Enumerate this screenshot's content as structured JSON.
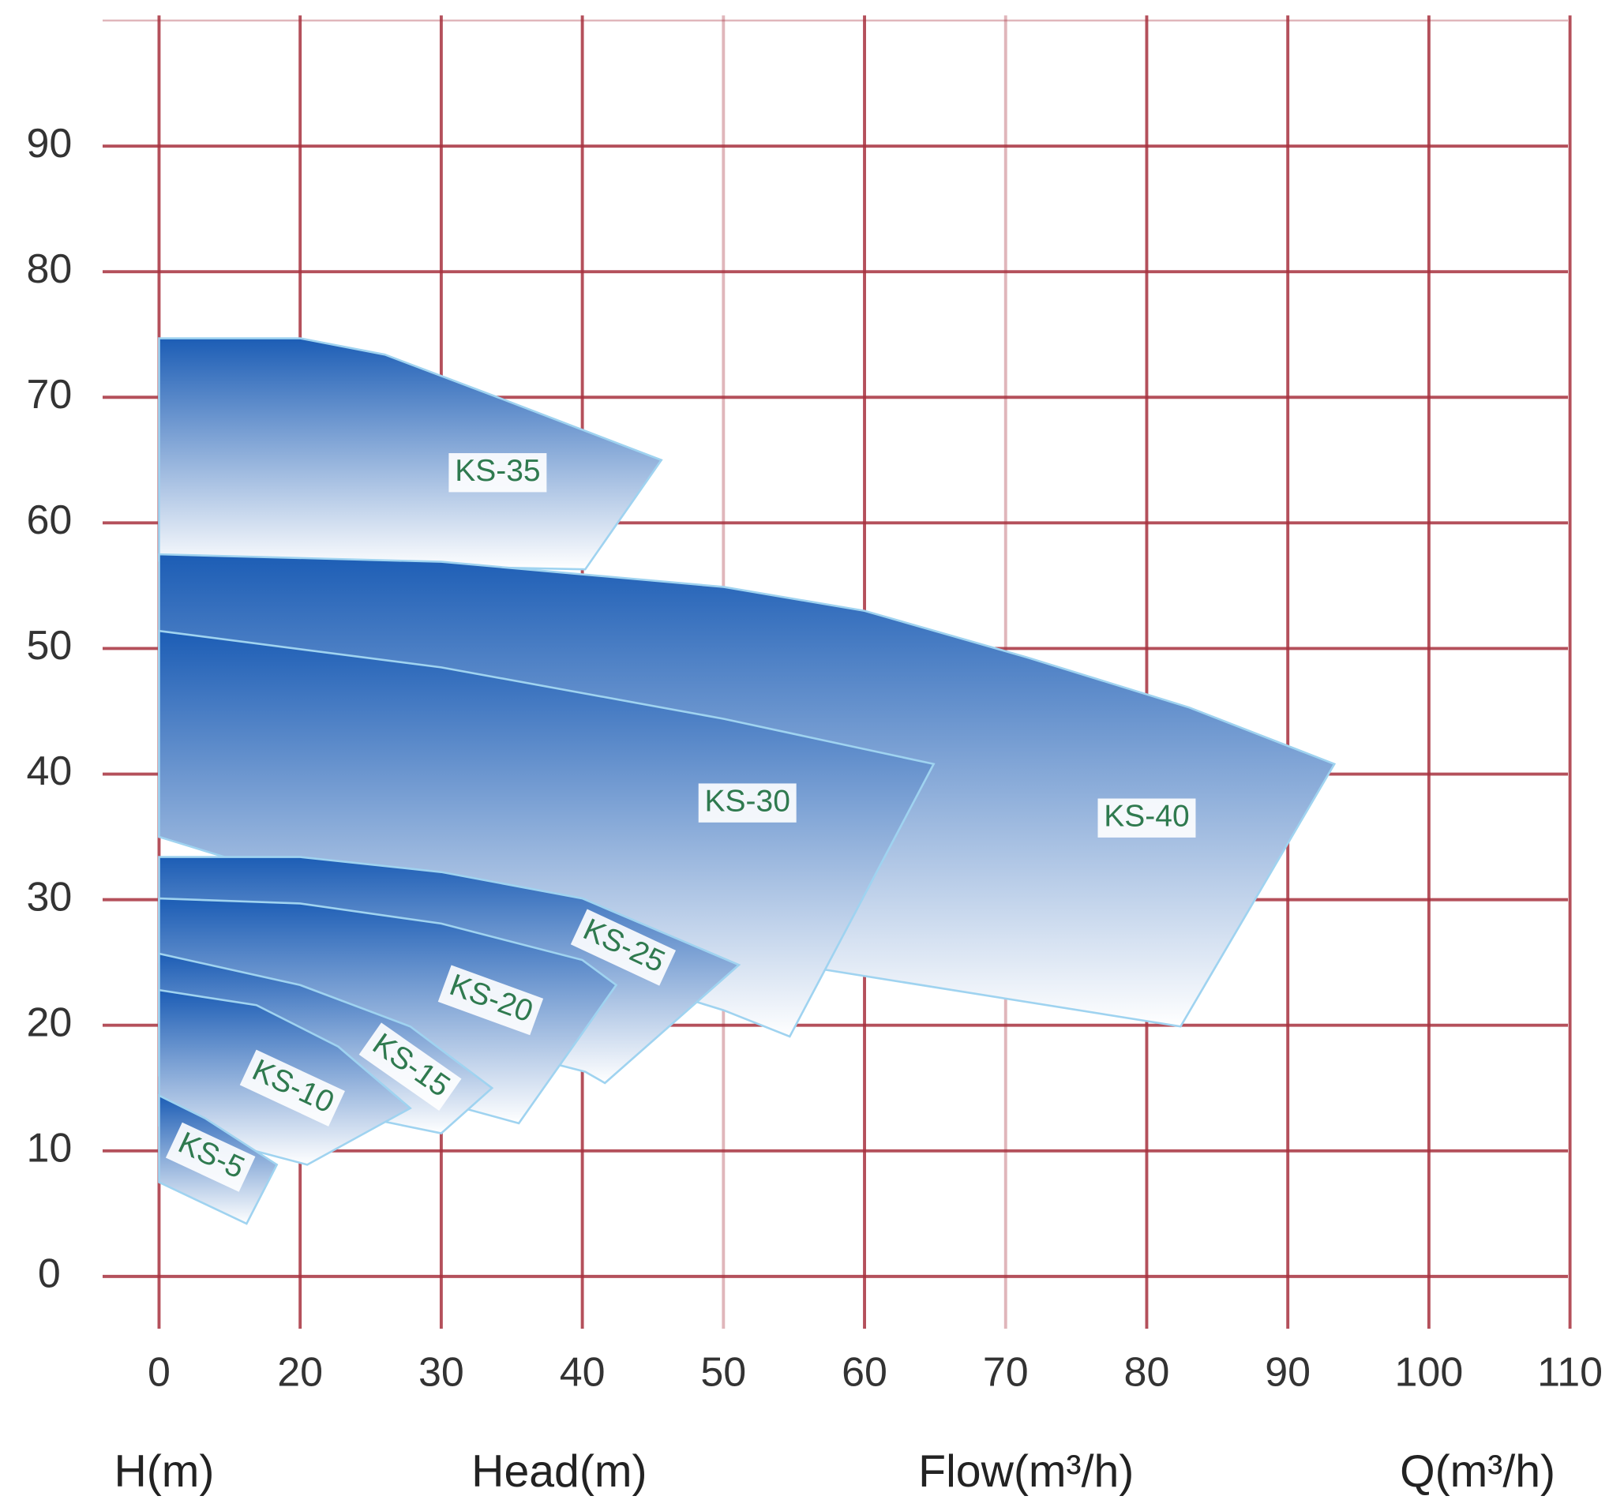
{
  "chart_data": {
    "type": "area",
    "x_labels": [
      "H(m)",
      "Head(m)",
      "Flow(m³/h)",
      "Q(m³/h)"
    ],
    "xticks": [
      0,
      20,
      30,
      40,
      50,
      60,
      70,
      80,
      90,
      100,
      110
    ],
    "ylim": [
      0,
      100
    ],
    "yticks": [
      0,
      10,
      20,
      30,
      40,
      50,
      60,
      70,
      80,
      90
    ],
    "grid": true,
    "grid_color": "#a8323f",
    "color": "#1c5db5",
    "series": [
      {
        "name": "KS-35",
        "x": [
          0,
          20,
          26,
          34,
          45.6,
          40.2
        ],
        "values": [
          74.7,
          74.7,
          73.4,
          70,
          65,
          56.3
        ],
        "x_low": [
          0
        ],
        "values_low": [
          57
        ]
      },
      {
        "name": "KS-40",
        "x": [
          0,
          30,
          50,
          60,
          71.5,
          83,
          93.3,
          82.4
        ],
        "values": [
          57.5,
          56.9,
          54.9,
          53,
          49.3,
          45.3,
          40.8,
          19.9
        ],
        "x_low": [
          57.3,
          0
        ],
        "values_low": [
          24.4,
          35
        ]
      },
      {
        "name": "KS-30",
        "x": [
          0,
          30,
          50,
          64.9,
          54.7
        ],
        "values": [
          51.4,
          48.5,
          44.4,
          40.8,
          19.1
        ],
        "x_low": [
          50,
          0
        ],
        "values_low": [
          21.2,
          35
        ]
      },
      {
        "name": "KS-25",
        "x": [
          0,
          20,
          30,
          40,
          51.1,
          41.6
        ],
        "values": [
          33.4,
          33.4,
          32.2,
          30.1,
          24.8,
          15.4
        ],
        "x_low": [
          40.2,
          0
        ],
        "values_low": [
          16.3,
          25
        ]
      },
      {
        "name": "KS-20",
        "x": [
          0,
          20,
          30,
          40,
          42.4,
          35.5
        ],
        "values": [
          30.1,
          29.7,
          28.1,
          25.2,
          23.2,
          12.2
        ],
        "x_low": [
          0
        ],
        "values_low": [
          20
        ]
      },
      {
        "name": "KS-15",
        "x": [
          0,
          20,
          27.8,
          33.6,
          30
        ],
        "values": [
          25.7,
          23.2,
          19.9,
          15,
          11.4
        ],
        "x_low": [
          0
        ],
        "values_low": [
          16
        ]
      },
      {
        "name": "KS-10",
        "x": [
          0,
          13.8,
          22.7,
          27.8,
          20.5
        ],
        "values": [
          22.8,
          21.6,
          18.3,
          13.4,
          8.9
        ],
        "x_low": [
          0
        ],
        "values_low": [
          12
        ]
      },
      {
        "name": "KS-5",
        "x": [
          0,
          6.5,
          16.7,
          12.4
        ],
        "values": [
          14.4,
          12.6,
          8.9,
          4.2
        ],
        "x_low": [
          0
        ],
        "values_low": [
          7.5
        ]
      }
    ]
  }
}
